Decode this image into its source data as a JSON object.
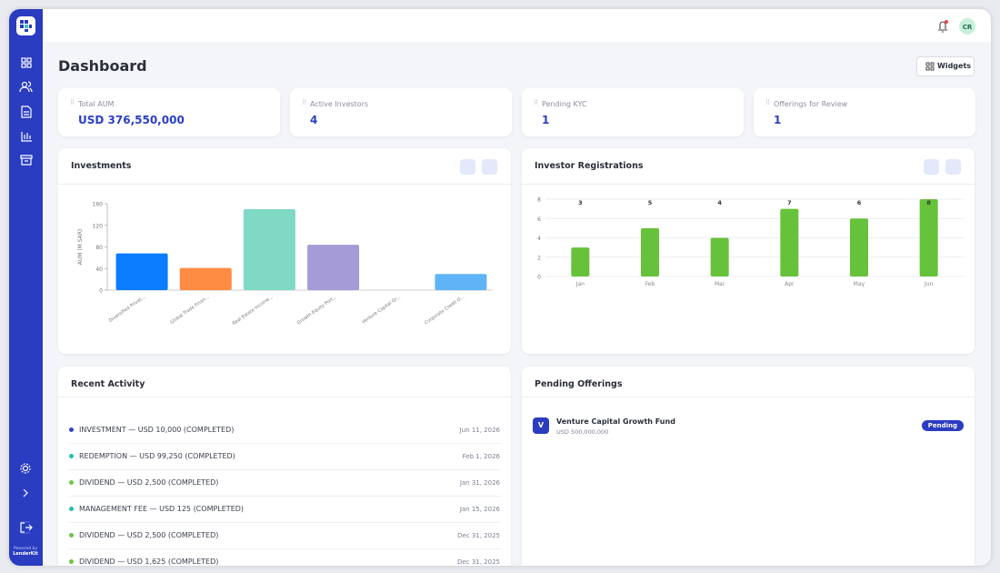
{
  "sidebar": {
    "powered_by": "Powered by",
    "brand": "LenderKit"
  },
  "header": {
    "avatar": "CR"
  },
  "page": {
    "title": "Dashboard",
    "widgets_button": "Widgets"
  },
  "stats": [
    {
      "label": "Total AUM",
      "value": "USD 376,550,000"
    },
    {
      "label": "Active Investors",
      "value": "4"
    },
    {
      "label": "Pending KYC",
      "value": "1"
    },
    {
      "label": "Offerings for Review",
      "value": "1"
    }
  ],
  "chart_data": [
    {
      "type": "bar",
      "title": "Investments",
      "y_label": "AUM (M SAR)",
      "categories": [
        "Diversified Privat...",
        "Global Trade Finan...",
        "Real Estate Income...",
        "Growth Equity Port...",
        "Venture Capital Gr...",
        "Corporate Credit O..."
      ],
      "values": [
        68,
        41,
        150,
        84,
        0,
        30
      ],
      "colors": [
        "#0a7cff",
        "#ff8c42",
        "#80d9c4",
        "#a59bd6",
        null,
        "#5eb4f7"
      ],
      "ylim": [
        0,
        160
      ],
      "yticks": [
        0,
        40,
        80,
        120,
        160
      ],
      "grid": false
    },
    {
      "type": "bar",
      "title": "Investor Registrations",
      "categories": [
        "Jan",
        "Feb",
        "Mar",
        "Apr",
        "May",
        "Jun"
      ],
      "values": [
        3,
        5,
        4,
        7,
        6,
        8
      ],
      "color": "#66c23a",
      "show_value_labels": true,
      "ylim": [
        0,
        8
      ],
      "yticks": [
        0,
        2,
        4,
        6,
        8
      ],
      "grid": true
    }
  ],
  "recent_activity": {
    "title": "Recent Activity",
    "items": [
      {
        "text": "INVESTMENT — USD 10,000 (COMPLETED)",
        "date": "Jun 11, 2026",
        "color": "#2f45c5"
      },
      {
        "text": "REDEMPTION — USD 99,250 (COMPLETED)",
        "date": "Feb 1, 2026",
        "color": "#1fbfb8"
      },
      {
        "text": "DIVIDEND — USD 2,500 (COMPLETED)",
        "date": "Jan 31, 2026",
        "color": "#6cc644"
      },
      {
        "text": "MANAGEMENT FEE — USD 125 (COMPLETED)",
        "date": "Jan 15, 2026",
        "color": "#1fbfb8"
      },
      {
        "text": "DIVIDEND — USD 2,500 (COMPLETED)",
        "date": "Dec 31, 2025",
        "color": "#6cc644"
      },
      {
        "text": "DIVIDEND — USD 1,625 (COMPLETED)",
        "date": "Dec 31, 2025",
        "color": "#6cc644"
      }
    ]
  },
  "pending_offerings": {
    "title": "Pending Offerings",
    "items": [
      {
        "initial": "V",
        "name": "Venture Capital Growth Fund",
        "amount": "USD 500,000,000",
        "status": "Pending"
      }
    ]
  }
}
